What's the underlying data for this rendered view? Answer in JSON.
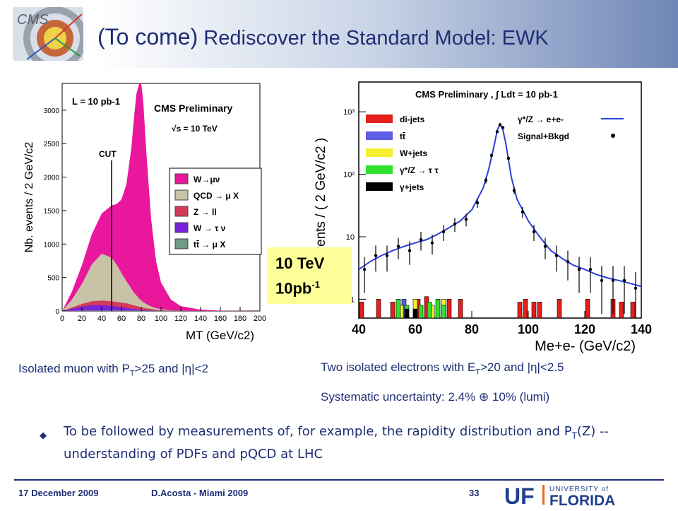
{
  "slide": {
    "title_prefix": "(To come)",
    "title_rest": " Rediscover the Standard Model: EWK",
    "logo_text": "CMS",
    "badge": {
      "line1": "10 TeV",
      "line2": "10pb",
      "sup": "-1"
    },
    "caption_left": {
      "a": "Isolated muon with P",
      "sub": "T",
      "b": ">25 and |",
      "eta": "η",
      "c": "|<2"
    },
    "caption_right": {
      "a": "Two isolated electrons with E",
      "sub": "T",
      "b": ">20 and |",
      "eta": "η",
      "c": "|<2.5"
    },
    "systematic": {
      "a": "Systematic uncertainty: 2.4% ",
      "sym": "⊕",
      "b": " 10% (lumi)"
    },
    "bullet": {
      "a": "To be followed by measurements of, for example, the rapidity distribution and P",
      "sub": "T",
      "b": "(Z)  -- understanding of PDFs and pQCD at LHC"
    },
    "footer": {
      "date": "17 December 2009",
      "author": "D.Acosta  -  Miami 2009",
      "page": "33",
      "uni_top": "UNIVERSITY of",
      "uni_uf": "UF",
      "uni_name": "FLORIDA"
    },
    "colors": {
      "accent": "#1f2e74",
      "badge": "#ffff99"
    }
  },
  "chart_data": [
    {
      "type": "area",
      "title": "CMS Preliminary",
      "annotations": [
        "L = 10 pb-1",
        "√s = 10 TeV",
        "CUT"
      ],
      "xlabel": "MT (GeV/c2)",
      "ylabel": "Nb. events / 2 GeV/c2",
      "xlim": [
        0,
        200
      ],
      "ylim": [
        0,
        3400
      ],
      "xticks": [
        "0",
        "20",
        "40",
        "60",
        "80",
        "100",
        "120",
        "140",
        "160",
        "180",
        "200"
      ],
      "yticks": [
        "0",
        "500",
        "1000",
        "1500",
        "2000",
        "2500",
        "3000"
      ],
      "cut_x": 50,
      "x": [
        0,
        10,
        20,
        30,
        40,
        50,
        55,
        60,
        65,
        70,
        72,
        75,
        78,
        80,
        82,
        85,
        90,
        95,
        100,
        110,
        120,
        140,
        160,
        200
      ],
      "series": [
        {
          "name": "W→μν",
          "color": "#e8179c",
          "values": [
            0,
            120,
            280,
            450,
            600,
            780,
            900,
            1100,
            1450,
            2100,
            2500,
            3000,
            3300,
            3250,
            3000,
            2300,
            1300,
            700,
            400,
            160,
            70,
            20,
            5,
            0
          ]
        },
        {
          "name": "QCD → μ X",
          "color": "#c8c3a6",
          "values": [
            0,
            120,
            300,
            550,
            700,
            650,
            560,
            440,
            330,
            240,
            200,
            160,
            120,
            100,
            85,
            65,
            40,
            25,
            15,
            6,
            2,
            0,
            0,
            0
          ]
        },
        {
          "name": "Z → ll",
          "color": "#d43a5c",
          "values": [
            0,
            20,
            40,
            60,
            70,
            70,
            70,
            70,
            70,
            60,
            55,
            50,
            45,
            40,
            35,
            30,
            20,
            12,
            8,
            3,
            1,
            0,
            0,
            0
          ]
        },
        {
          "name": "W → τ ν",
          "color": "#7a22d8",
          "values": [
            0,
            30,
            60,
            80,
            80,
            70,
            60,
            50,
            40,
            30,
            25,
            20,
            15,
            12,
            10,
            8,
            5,
            3,
            2,
            0,
            0,
            0,
            0,
            0
          ]
        },
        {
          "name": "tt̄ → μ X",
          "color": "#6f9a85",
          "values": [
            0,
            3,
            5,
            6,
            6,
            6,
            6,
            6,
            5,
            5,
            5,
            5,
            4,
            4,
            4,
            3,
            3,
            2,
            2,
            1,
            0,
            0,
            0,
            0
          ]
        }
      ],
      "legend": [
        "W→μν",
        "QCD → μ X",
        "Z → ll",
        "W → τ ν",
        "tt̄ → μ X"
      ],
      "legend_position": "right"
    },
    {
      "type": "line",
      "title": "CMS Preliminary , ∫ Ldt = 10 pb-1",
      "xlabel": "Me+e- (GeV/c2)",
      "ylabel": "Events / ( 2 GeV/c2 )",
      "yscale": "log",
      "xlim": [
        40,
        140
      ],
      "ylim": [
        0.5,
        3000
      ],
      "xticks": [
        "40",
        "60",
        "80",
        "100",
        "120",
        "140"
      ],
      "yticks": [
        "1",
        "10",
        "10²",
        "10³"
      ],
      "signal": {
        "name": "γ*/Z → e+e-",
        "color": "#2d3fd8",
        "x": [
          40,
          44,
          48,
          52,
          56,
          60,
          64,
          68,
          72,
          76,
          80,
          84,
          86,
          88,
          89,
          90,
          91,
          92,
          94,
          96,
          100,
          104,
          108,
          112,
          116,
          120,
          124,
          128,
          132,
          136,
          140
        ],
        "values": [
          3,
          4,
          5,
          6,
          7,
          8,
          9,
          11,
          14,
          18,
          27,
          60,
          120,
          300,
          500,
          640,
          520,
          320,
          90,
          40,
          18,
          10,
          6,
          4.5,
          3.5,
          3,
          2.5,
          2.2,
          2,
          1.8,
          1.6
        ]
      },
      "data_points": {
        "name": "Signal+Bkgd",
        "color": "#000000",
        "x": [
          42,
          46,
          50,
          54,
          58,
          62,
          66,
          70,
          74,
          78,
          82,
          85,
          87,
          89,
          90,
          91,
          93,
          95,
          98,
          102,
          106,
          110,
          114,
          118,
          122,
          126,
          130,
          134,
          138
        ],
        "values": [
          3,
          5,
          5,
          7,
          6,
          9,
          8,
          12,
          16,
          19,
          35,
          80,
          200,
          480,
          620,
          560,
          180,
          55,
          25,
          12,
          7,
          5,
          4,
          3,
          3,
          2,
          2,
          2,
          1.5
        ]
      },
      "backgrounds": [
        {
          "name": "di-jets",
          "color": "#e3201c",
          "bins": [
            [
              41,
              0.9
            ],
            [
              47,
              1.0
            ],
            [
              52,
              0.9
            ],
            [
              61,
              1.0
            ],
            [
              64,
              1.1
            ],
            [
              72,
              1.0
            ],
            [
              76,
              1.0
            ],
            [
              97,
              0.9
            ],
            [
              99,
              1.0
            ],
            [
              102,
              0.9
            ],
            [
              104,
              0.9
            ],
            [
              111,
              1.0
            ],
            [
              121,
              1.0
            ],
            [
              130,
              1.0
            ],
            [
              133,
              0.9
            ],
            [
              137,
              0.9
            ]
          ]
        },
        {
          "name": "tt̄",
          "color": "#5e5ee6",
          "bins": [
            [
              56,
              1.0
            ],
            [
              66,
              0.8
            ],
            [
              70,
              0.9
            ]
          ]
        },
        {
          "name": "W+jets",
          "color": "#f5f032",
          "bins": [
            [
              55,
              0.8
            ],
            [
              60,
              1.0
            ],
            [
              66,
              0.8
            ],
            [
              70,
              1.0
            ]
          ]
        },
        {
          "name": "γ*/Z → τ τ",
          "color": "#2ee12e",
          "bins": [
            [
              54,
              1.0
            ],
            [
              57,
              0.8
            ],
            [
              62,
              0.8
            ],
            [
              65,
              0.9
            ],
            [
              68,
              1.0
            ],
            [
              70,
              0.8
            ]
          ]
        },
        {
          "name": "γ+jets",
          "color": "#000000",
          "bins": [
            [
              57,
              0.7
            ],
            [
              60,
              0.7
            ]
          ]
        }
      ],
      "legend": [
        "di-jets",
        "tt̄",
        "W+jets",
        "γ*/Z → τ τ",
        "γ+jets",
        "γ*/Z → e+e-",
        "Signal+Bkgd"
      ],
      "legend_position": "top"
    }
  ]
}
